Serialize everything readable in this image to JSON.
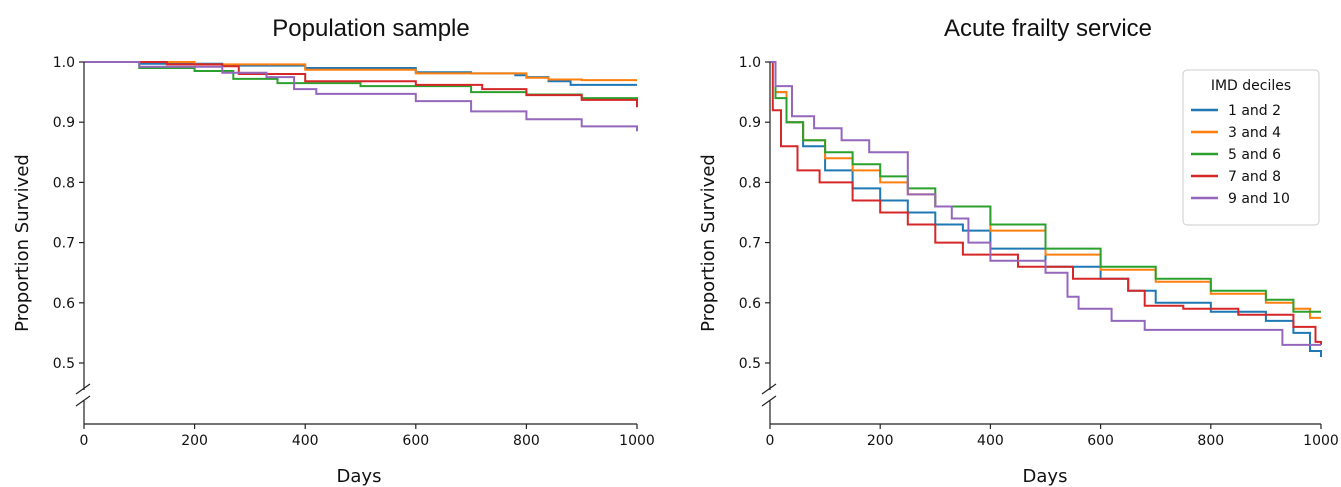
{
  "chart_data": [
    {
      "type": "line",
      "title": "Population sample",
      "xlabel": "Days",
      "ylabel": "Proportion Survived",
      "xlim": [
        0,
        1000
      ],
      "ylim": [
        0.5,
        1.0
      ],
      "xticks": [
        "0",
        "200",
        "400",
        "600",
        "800",
        "1000"
      ],
      "yticks": [
        "0.5",
        "0.6",
        "0.7",
        "0.8",
        "0.9",
        "1.0"
      ],
      "axis_break": "y",
      "grid": false,
      "series": [
        {
          "color": "#1f77b4",
          "step": true,
          "x": [
            0,
            100,
            250,
            400,
            600,
            700,
            780,
            800,
            840,
            880,
            1000
          ],
          "y": [
            1.0,
            0.997,
            0.994,
            0.99,
            0.983,
            0.981,
            0.978,
            0.975,
            0.968,
            0.962,
            0.962
          ]
        },
        {
          "color": "#ff7f0e",
          "step": true,
          "x": [
            0,
            200,
            400,
            600,
            800,
            840,
            900,
            1000
          ],
          "y": [
            1.0,
            0.996,
            0.987,
            0.981,
            0.974,
            0.971,
            0.97,
            0.97
          ]
        },
        {
          "color": "#2ca02c",
          "step": true,
          "x": [
            0,
            100,
            200,
            270,
            350,
            500,
            700,
            800,
            900,
            1000
          ],
          "y": [
            1.0,
            0.99,
            0.985,
            0.972,
            0.965,
            0.96,
            0.95,
            0.946,
            0.94,
            0.925
          ]
        },
        {
          "color": "#d62728",
          "step": true,
          "x": [
            0,
            150,
            250,
            280,
            400,
            600,
            720,
            800,
            900,
            1000
          ],
          "y": [
            1.0,
            0.996,
            0.993,
            0.98,
            0.968,
            0.962,
            0.955,
            0.945,
            0.937,
            0.925
          ]
        },
        {
          "color": "#9467bd",
          "step": true,
          "x": [
            0,
            100,
            250,
            330,
            380,
            420,
            600,
            700,
            800,
            900,
            1000
          ],
          "y": [
            1.0,
            0.992,
            0.982,
            0.975,
            0.955,
            0.947,
            0.935,
            0.918,
            0.905,
            0.893,
            0.885
          ]
        }
      ]
    },
    {
      "type": "line",
      "title": "Acute frailty service",
      "xlabel": "Days",
      "ylabel": "Proportion Survived",
      "xlim": [
        0,
        1000
      ],
      "ylim": [
        0.5,
        1.0
      ],
      "xticks": [
        "0",
        "200",
        "400",
        "600",
        "800",
        "1000"
      ],
      "yticks": [
        "0.5",
        "0.6",
        "0.7",
        "0.8",
        "0.9",
        "1.0"
      ],
      "axis_break": "y",
      "grid": false,
      "legend": {
        "title": "IMD deciles",
        "placement": "top-right"
      },
      "series": [
        {
          "name": "1 and 2",
          "color": "#1f77b4",
          "step": true,
          "x": [
            0,
            10,
            30,
            60,
            100,
            150,
            200,
            250,
            300,
            350,
            400,
            500,
            600,
            650,
            700,
            800,
            900,
            950,
            980,
            1000
          ],
          "y": [
            1.0,
            0.95,
            0.9,
            0.86,
            0.82,
            0.79,
            0.77,
            0.75,
            0.73,
            0.72,
            0.69,
            0.66,
            0.64,
            0.62,
            0.6,
            0.585,
            0.57,
            0.55,
            0.52,
            0.51
          ]
        },
        {
          "name": "3 and 4",
          "color": "#ff7f0e",
          "step": true,
          "x": [
            0,
            10,
            30,
            60,
            100,
            150,
            200,
            250,
            300,
            400,
            500,
            600,
            700,
            800,
            900,
            950,
            980,
            1000
          ],
          "y": [
            1.0,
            0.95,
            0.9,
            0.87,
            0.84,
            0.82,
            0.8,
            0.78,
            0.76,
            0.72,
            0.68,
            0.655,
            0.635,
            0.615,
            0.6,
            0.59,
            0.575,
            0.575
          ]
        },
        {
          "name": "5 and 6",
          "color": "#2ca02c",
          "step": true,
          "x": [
            0,
            10,
            30,
            60,
            100,
            150,
            200,
            250,
            300,
            400,
            500,
            600,
            700,
            800,
            900,
            950,
            1000
          ],
          "y": [
            1.0,
            0.94,
            0.9,
            0.87,
            0.85,
            0.83,
            0.81,
            0.79,
            0.76,
            0.73,
            0.69,
            0.66,
            0.64,
            0.62,
            0.605,
            0.585,
            0.585
          ]
        },
        {
          "name": "7 and 8",
          "color": "#d62728",
          "step": true,
          "x": [
            0,
            5,
            20,
            50,
            90,
            150,
            200,
            250,
            300,
            350,
            450,
            550,
            650,
            680,
            750,
            850,
            950,
            990,
            1000
          ],
          "y": [
            1.0,
            0.92,
            0.86,
            0.82,
            0.8,
            0.77,
            0.75,
            0.73,
            0.7,
            0.68,
            0.66,
            0.64,
            0.62,
            0.595,
            0.59,
            0.58,
            0.56,
            0.535,
            0.53
          ]
        },
        {
          "name": "9 and 10",
          "color": "#9467bd",
          "step": true,
          "x": [
            0,
            10,
            40,
            80,
            130,
            180,
            250,
            300,
            330,
            360,
            400,
            500,
            540,
            560,
            620,
            680,
            800,
            900,
            930,
            980,
            1000
          ],
          "y": [
            1.0,
            0.96,
            0.91,
            0.89,
            0.87,
            0.85,
            0.78,
            0.76,
            0.74,
            0.7,
            0.67,
            0.65,
            0.61,
            0.59,
            0.57,
            0.555,
            0.555,
            0.555,
            0.53,
            0.53,
            0.53
          ]
        }
      ]
    }
  ]
}
